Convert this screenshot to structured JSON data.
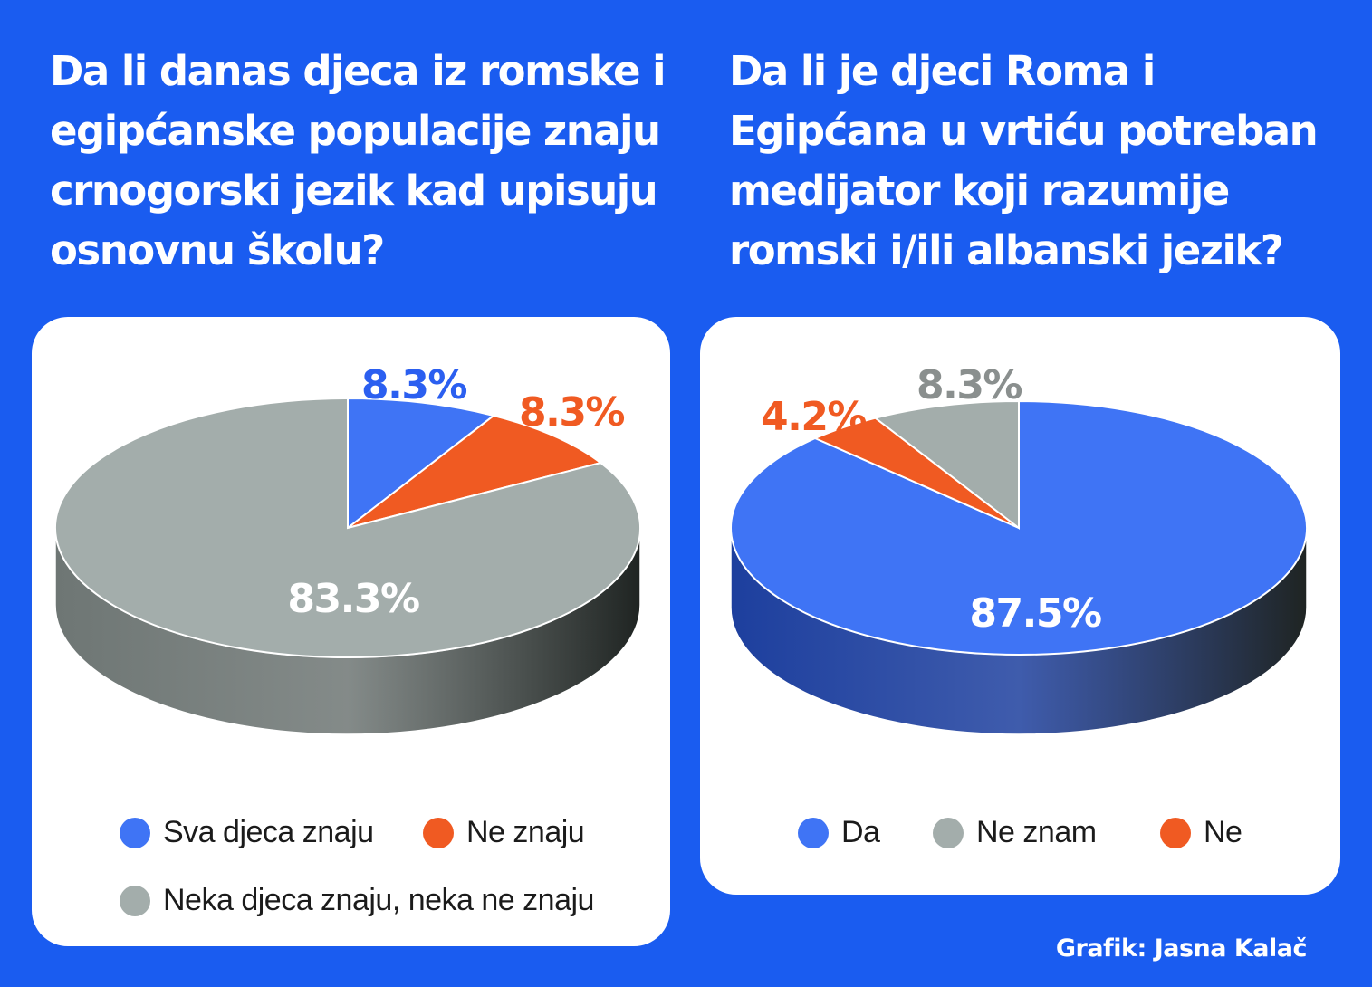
{
  "charts": [
    {
      "title_lines": [
        "Da li danas djeca iz romske i",
        "egipćanske populacije znaju",
        "crnogorski jezik kad upisuju",
        "osnovnu školu?"
      ],
      "chart_data": {
        "type": "pie",
        "title": "Da li danas djeca iz romske i egipćanske populacije znaju crnogorski jezik kad upisuju osnovnu školu?",
        "slices": [
          {
            "label": "Sva djeca znaju",
            "value": 8.3,
            "value_label": "8.3%",
            "color": "#3f74f5",
            "side_color": "#1d3f9e"
          },
          {
            "label": "Ne znaju",
            "value": 8.3,
            "value_label": "8.3%",
            "color": "#f05a22",
            "side_color": "#9c3510"
          },
          {
            "label": "Neka djeca znaju, neka ne znaju",
            "value": 83.3,
            "value_label": "83.3%",
            "color": "#a3adab",
            "side_color": "#6e7674"
          }
        ],
        "legend": [
          "Sva djeca znaju",
          "Ne znaju",
          "Neka djeca znaju, neka ne znaju"
        ]
      }
    },
    {
      "title_lines": [
        "Da li je djeci Roma i",
        "Egipćana u vrtiću potreban",
        "medijator koji razumije",
        "romski i/ili albanski jezik?"
      ],
      "chart_data": {
        "type": "pie",
        "title": "Da li je djeci Roma i Egipćana u vrtiću potreban medijator koji razumije romski i/ili albanski jezik?",
        "slices": [
          {
            "label": "Da",
            "value": 87.5,
            "value_label": "87.5%",
            "color": "#3f74f5",
            "side_color": "#1d3f9e"
          },
          {
            "label": "Ne",
            "value": 4.2,
            "value_label": "4.2%",
            "color": "#f05a22",
            "side_color": "#9c3510"
          },
          {
            "label": "Ne znam",
            "value": 8.3,
            "value_label": "8.3%",
            "color": "#a3adab",
            "side_color": "#6e7674"
          }
        ],
        "legend": [
          "Da",
          "Ne znam",
          "Ne"
        ]
      }
    }
  ],
  "credit": "Grafik: Jasna Kalač",
  "colors": {
    "background": "#1a5cf0",
    "card": "#ffffff",
    "blue": "#3f74f5",
    "orange": "#f05a22",
    "gray": "#a3adab"
  }
}
